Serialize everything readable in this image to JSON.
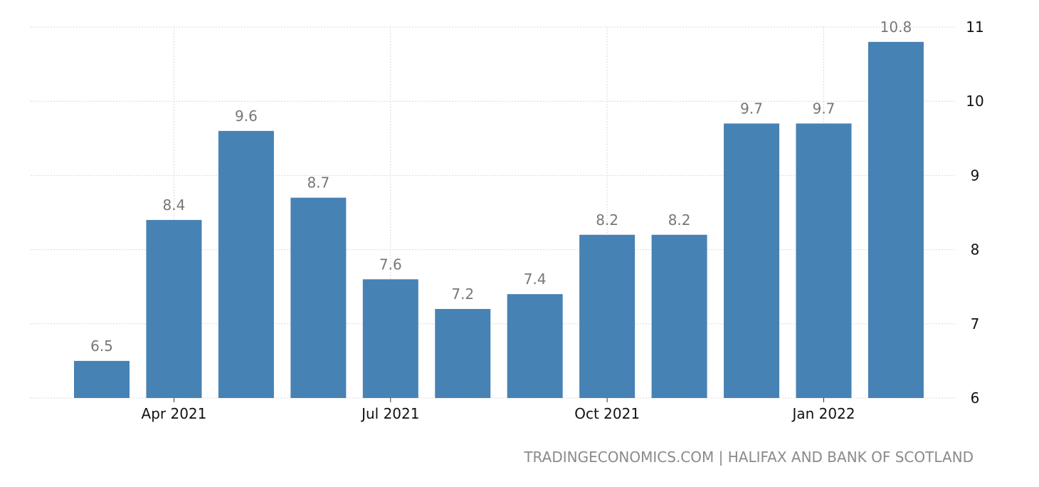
{
  "chart_data": {
    "type": "bar",
    "x": [
      "2021-03",
      "2021-04",
      "2021-05",
      "2021-06",
      "2021-07",
      "2021-08",
      "2021-09",
      "2021-10",
      "2021-11",
      "2021-12",
      "2022-01",
      "2022-02"
    ],
    "values": [
      6.5,
      8.4,
      9.6,
      8.7,
      7.6,
      7.2,
      7.4,
      8.2,
      8.2,
      9.7,
      9.7,
      10.8
    ],
    "data_labels": [
      "6.5",
      "8.4",
      "9.6",
      "8.7",
      "7.6",
      "7.2",
      "7.4",
      "8.2",
      "8.2",
      "9.7",
      "9.7",
      "10.8"
    ],
    "x_ticks": [
      {
        "at": "2021-04",
        "label": "Apr 2021"
      },
      {
        "at": "2021-07",
        "label": "Jul 2021"
      },
      {
        "at": "2021-10",
        "label": "Oct 2021"
      },
      {
        "at": "2022-01",
        "label": "Jan 2022"
      }
    ],
    "y_ticks": [
      6,
      7,
      8,
      9,
      10,
      11
    ],
    "ylim": [
      6,
      11
    ],
    "y_axis_side": "right",
    "grid": true,
    "bar_color": "#4682b4",
    "label_color": "#777777",
    "grid_color": "#d9d9d9",
    "title": "",
    "xlabel": "",
    "ylabel": ""
  },
  "source": "TRADINGECONOMICS.COM | HALIFAX AND BANK OF SCOTLAND"
}
